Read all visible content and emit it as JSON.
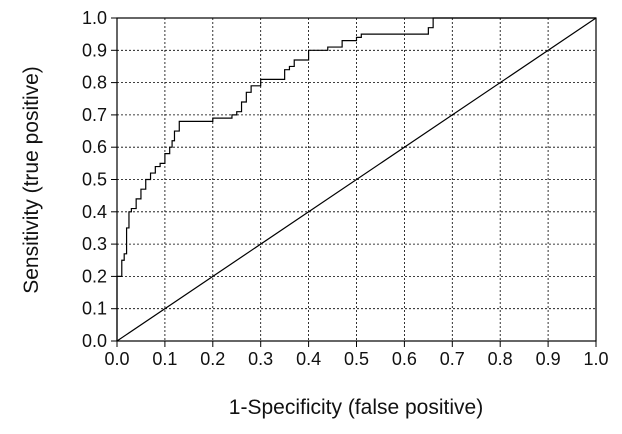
{
  "chart_data": {
    "type": "line",
    "title": "",
    "xlabel": "1-Specificity (false positive)",
    "ylabel": "Sensitivity (true positive)",
    "xlim": [
      0.0,
      1.0
    ],
    "ylim": [
      0.0,
      1.0
    ],
    "xticks": [
      "0.0",
      "0.1",
      "0.2",
      "0.3",
      "0.4",
      "0.5",
      "0.6",
      "0.7",
      "0.8",
      "0.9",
      "1.0"
    ],
    "yticks": [
      "0.0",
      "0.1",
      "0.2",
      "0.3",
      "0.4",
      "0.5",
      "0.6",
      "0.7",
      "0.8",
      "0.9",
      "1.0"
    ],
    "grid": true,
    "grid_style": "dashed",
    "line_color": "#000000",
    "series": [
      {
        "x": [
          0.0,
          0.0,
          0.01,
          0.01,
          0.015,
          0.015,
          0.02,
          0.02,
          0.025,
          0.025,
          0.03,
          0.03,
          0.04,
          0.04,
          0.05,
          0.05,
          0.06,
          0.06,
          0.07,
          0.07,
          0.08,
          0.08,
          0.09,
          0.09,
          0.1,
          0.1,
          0.11,
          0.11,
          0.115,
          0.115,
          0.12,
          0.12,
          0.13,
          0.13,
          0.14,
          0.14,
          0.2,
          0.2,
          0.24,
          0.24,
          0.25,
          0.25,
          0.26,
          0.26,
          0.27,
          0.27,
          0.28,
          0.28,
          0.3,
          0.3,
          0.35,
          0.35,
          0.36,
          0.36,
          0.37,
          0.37,
          0.4,
          0.4,
          0.44,
          0.44,
          0.47,
          0.47,
          0.5,
          0.5,
          0.51,
          0.51,
          0.54,
          0.54,
          0.65,
          0.65,
          0.66,
          0.66,
          1.0
        ],
        "y": [
          0.0,
          0.2,
          0.2,
          0.25,
          0.25,
          0.27,
          0.27,
          0.35,
          0.35,
          0.4,
          0.4,
          0.41,
          0.41,
          0.44,
          0.44,
          0.47,
          0.47,
          0.5,
          0.5,
          0.52,
          0.52,
          0.54,
          0.54,
          0.55,
          0.55,
          0.58,
          0.58,
          0.6,
          0.6,
          0.62,
          0.62,
          0.65,
          0.65,
          0.68,
          0.68,
          0.68,
          0.68,
          0.69,
          0.69,
          0.7,
          0.7,
          0.71,
          0.71,
          0.74,
          0.74,
          0.77,
          0.77,
          0.79,
          0.79,
          0.81,
          0.81,
          0.84,
          0.84,
          0.85,
          0.85,
          0.87,
          0.87,
          0.9,
          0.9,
          0.91,
          0.91,
          0.93,
          0.93,
          0.94,
          0.94,
          0.95,
          0.95,
          0.95,
          0.95,
          0.97,
          0.97,
          1.0,
          1.0
        ]
      },
      {
        "x": [
          0.0,
          1.0
        ],
        "y": [
          0.0,
          1.0
        ]
      }
    ]
  }
}
